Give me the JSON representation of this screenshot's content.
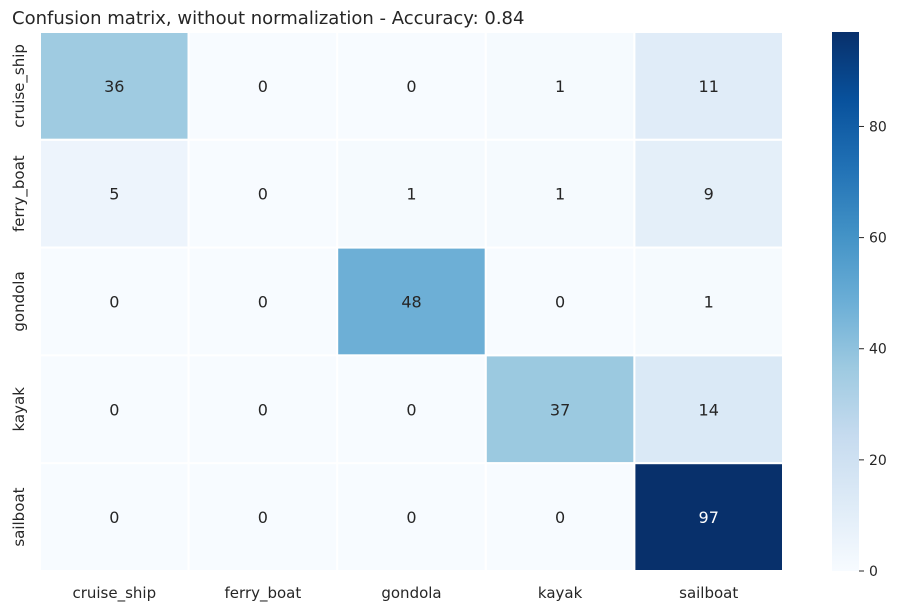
{
  "chart_data": {
    "type": "heatmap",
    "title": "Confusion matrix, without normalization - Accuracy: 0.84",
    "xlabel": "",
    "ylabel": "",
    "x_categories": [
      "cruise_ship",
      "ferry_boat",
      "gondola",
      "kayak",
      "sailboat"
    ],
    "y_categories": [
      "cruise_ship",
      "ferry_boat",
      "gondola",
      "kayak",
      "sailboat"
    ],
    "values": [
      [
        36,
        0,
        0,
        1,
        11
      ],
      [
        5,
        0,
        1,
        1,
        9
      ],
      [
        0,
        0,
        48,
        0,
        1
      ],
      [
        0,
        0,
        0,
        37,
        14
      ],
      [
        0,
        0,
        0,
        0,
        97
      ]
    ],
    "colormap": "Blues",
    "vmin": 0,
    "vmax": 97,
    "colorbar": {
      "ticks": [
        0,
        20,
        40,
        60,
        80
      ]
    }
  }
}
